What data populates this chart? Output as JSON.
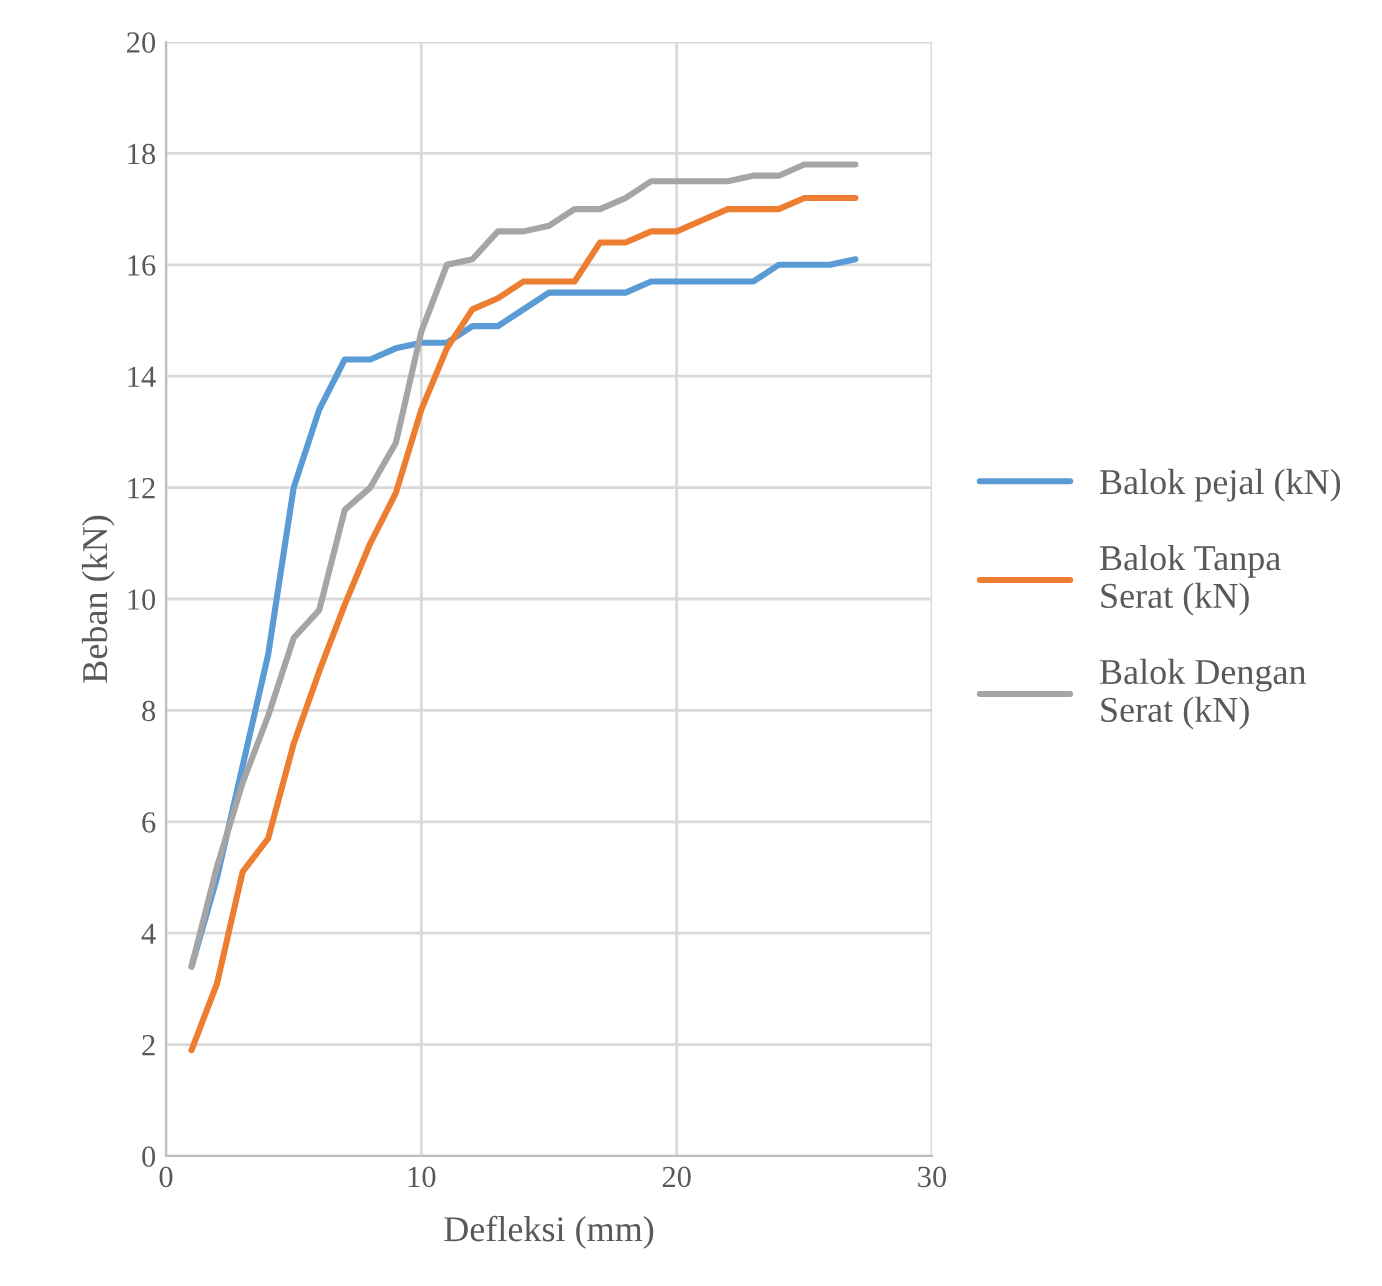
{
  "chart_data": {
    "type": "line",
    "xlabel": "Defleksi (mm)",
    "ylabel": "Beban (kN)",
    "x": [
      1,
      2,
      3,
      4,
      5,
      6,
      7,
      8,
      9,
      10,
      11,
      12,
      13,
      14,
      15,
      16,
      17,
      18,
      19,
      20,
      21,
      22,
      23,
      24,
      25,
      26,
      27
    ],
    "series": [
      {
        "name": "Balok pejal (kN)",
        "color": "#5b9bd5",
        "values": [
          3.4,
          5.0,
          7.0,
          9.0,
          12.0,
          13.4,
          14.3,
          14.3,
          14.5,
          14.6,
          14.6,
          14.9,
          14.9,
          15.2,
          15.5,
          15.5,
          15.5,
          15.5,
          15.7,
          15.7,
          15.7,
          15.7,
          15.7,
          16.0,
          16.0,
          16.0,
          16.1
        ]
      },
      {
        "name": "Balok Tanpa Serat (kN)",
        "color": "#ed7d31",
        "values": [
          1.9,
          3.1,
          5.1,
          5.7,
          7.4,
          8.7,
          9.9,
          11.0,
          11.9,
          13.4,
          14.5,
          15.2,
          15.4,
          15.7,
          15.7,
          15.7,
          16.4,
          16.4,
          16.6,
          16.6,
          16.8,
          17.0,
          17.0,
          17.0,
          17.2,
          17.2,
          17.2
        ]
      },
      {
        "name": "Balok Dengan Serat (kN)",
        "color": "#a5a5a5",
        "values": [
          3.4,
          5.2,
          6.7,
          7.9,
          9.3,
          9.8,
          11.6,
          12.0,
          12.8,
          14.8,
          16.0,
          16.1,
          16.6,
          16.6,
          16.7,
          17.0,
          17.0,
          17.2,
          17.5,
          17.5,
          17.5,
          17.5,
          17.6,
          17.6,
          17.8,
          17.8,
          17.8
        ]
      }
    ],
    "xlim": [
      0,
      30
    ],
    "xticks": [
      0,
      10,
      20,
      30
    ],
    "ylim": [
      0,
      20
    ],
    "yticks": [
      0,
      2,
      4,
      6,
      8,
      10,
      12,
      14,
      16,
      18,
      20
    ],
    "grid": true,
    "legend": "right",
    "marker": "none",
    "line_style": "solid"
  }
}
